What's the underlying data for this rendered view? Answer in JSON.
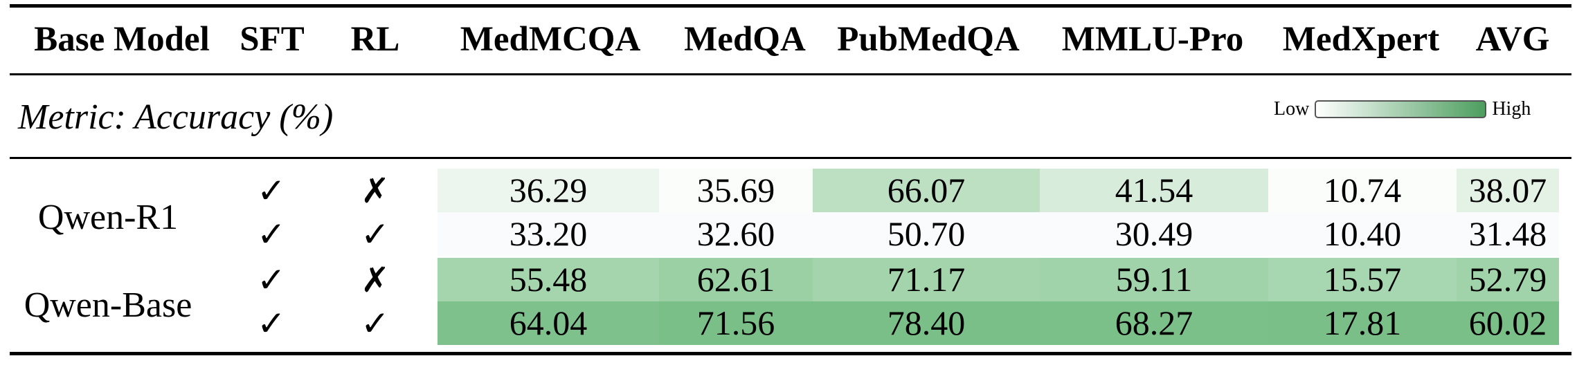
{
  "headers": [
    "Base Model",
    "SFT",
    "RL",
    "MedMCQA",
    "MedQA",
    "PubMedQA",
    "MMLU-Pro",
    "MedXpert",
    "AVG"
  ],
  "metric_label": "Metric: Accuracy (%)",
  "legend": {
    "low": "Low",
    "high": "High",
    "color_low": "#ffffff",
    "color_high": "#4d9e5f"
  },
  "models": [
    "Qwen-R1",
    "Qwen-Base"
  ],
  "marks": {
    "check": "✓",
    "cross": "✗"
  },
  "rows": [
    {
      "model": "Qwen-R1",
      "sft": "✓",
      "rl": "✗",
      "values": [
        "36.29",
        "35.69",
        "66.07",
        "41.54",
        "10.74",
        "38.07"
      ],
      "colors": [
        "#edf6ee",
        "#fbfdfb",
        "#bde0c3",
        "#d8ecdc",
        "#fbfdfb",
        "#e4f2e6"
      ]
    },
    {
      "model": "Qwen-R1",
      "sft": "✓",
      "rl": "✓",
      "values": [
        "33.20",
        "32.60",
        "50.70",
        "30.49",
        "10.40",
        "31.48"
      ],
      "colors": [
        "#fafbfd",
        "#fafbfd",
        "#fafbfd",
        "#fafbfd",
        "#fafbfd",
        "#fafbfd"
      ]
    },
    {
      "model": "Qwen-Base",
      "sft": "✓",
      "rl": "✗",
      "values": [
        "55.48",
        "62.61",
        "71.17",
        "59.11",
        "15.57",
        "52.79"
      ],
      "colors": [
        "#a4d5ad",
        "#9bd0a4",
        "#a3d4ac",
        "#a1d3aa",
        "#a7d7b0",
        "#a1d3aa"
      ]
    },
    {
      "model": "Qwen-Base",
      "sft": "✓",
      "rl": "✓",
      "values": [
        "64.04",
        "71.56",
        "78.40",
        "68.27",
        "17.81",
        "60.02"
      ],
      "colors": [
        "#7fc18c",
        "#7bbf88",
        "#7abf87",
        "#7cc089",
        "#7bbf88",
        "#7bbf88"
      ]
    }
  ]
}
